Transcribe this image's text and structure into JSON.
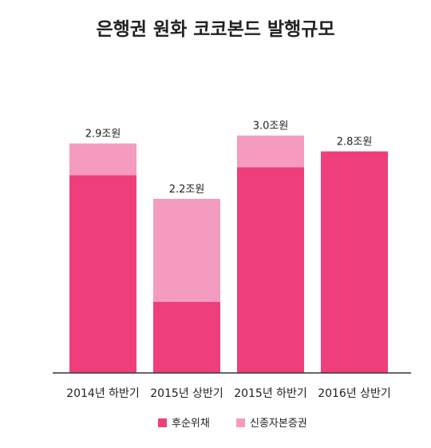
{
  "chart_data": {
    "type": "bar",
    "stacked": true,
    "title": "은행권 원화 코코본드 발행규모",
    "categories": [
      "2014년 하반기",
      "2015년 상반기",
      "2015년 하반기",
      "2016년 상반기"
    ],
    "series": [
      {
        "name": "후순위채",
        "color": "#ee3f7c",
        "values": [
          2.5,
          0.9,
          2.6,
          2.8
        ]
      },
      {
        "name": "신종자본증권",
        "color": "#f49bbf",
        "values": [
          0.4,
          1.3,
          0.4,
          0.0
        ]
      }
    ],
    "total_labels": [
      "2.9조원",
      "2.2조원",
      "3.0조원",
      "2.8조원"
    ],
    "ylim": [
      0,
      3.3
    ],
    "legend_position": "bottom",
    "grid": false
  }
}
